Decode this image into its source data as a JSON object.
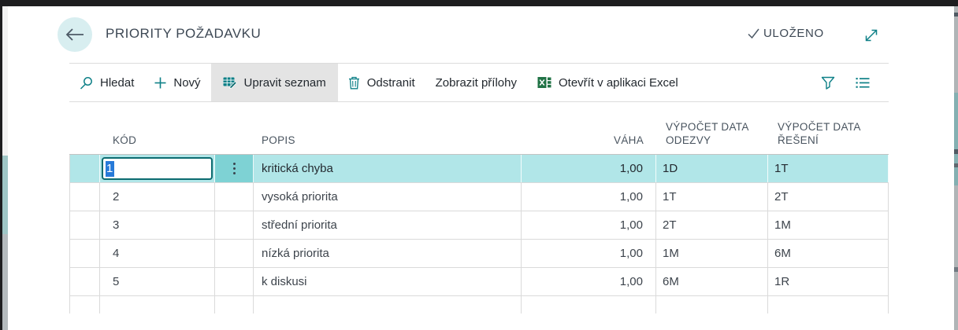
{
  "header": {
    "title": "PRIORITY POŽADAVKU",
    "status_label": "ULOŽENO"
  },
  "toolbar": {
    "items": [
      {
        "label": "Hledat",
        "icon": "search-icon"
      },
      {
        "label": "Nový",
        "icon": "plus-icon"
      },
      {
        "label": "Upravit seznam",
        "icon": "edit-list-icon",
        "active": true
      },
      {
        "label": "Odstranit",
        "icon": "trash-icon"
      },
      {
        "label": "Zobrazit přílohy",
        "icon": null
      },
      {
        "label": "Otevřít v aplikaci Excel",
        "icon": "excel-icon"
      }
    ],
    "right_icons": [
      "filter-icon",
      "list-options-icon"
    ]
  },
  "table": {
    "columns": [
      {
        "key": "kod",
        "label": "KÓD"
      },
      {
        "key": "popis",
        "label": "POPIS"
      },
      {
        "key": "vaha",
        "label": "VÁHA"
      },
      {
        "key": "odezva",
        "label": "VÝPOČET DATA ODEZVY"
      },
      {
        "key": "reseni",
        "label": "VÝPOČET DATA ŘEŠENÍ"
      }
    ],
    "rows": [
      {
        "kod": "1",
        "popis": "kritická chyba",
        "vaha": "1,00",
        "odezva": "1D",
        "reseni": "1T",
        "selected": true
      },
      {
        "kod": "2",
        "popis": "vysoká priorita",
        "vaha": "1,00",
        "odezva": "1T",
        "reseni": "2T"
      },
      {
        "kod": "3",
        "popis": "střední priorita",
        "vaha": "1,00",
        "odezva": "2T",
        "reseni": "1M"
      },
      {
        "kod": "4",
        "popis": "nízká priorita",
        "vaha": "1,00",
        "odezva": "1M",
        "reseni": "6M"
      },
      {
        "kod": "5",
        "popis": "k diskusi",
        "vaha": "1,00",
        "odezva": "6M",
        "reseni": "1R"
      }
    ]
  },
  "colors": {
    "accent_teal": "#0e8087",
    "selected_row_bg": "#b1e6e8",
    "selected_row_menu_bg": "#7ed2d4",
    "text_selection_bg": "#2779d8",
    "excel_green": "#217346",
    "active_button_bg": "#e4e4e4",
    "back_circle_bg": "#d8eef0"
  }
}
